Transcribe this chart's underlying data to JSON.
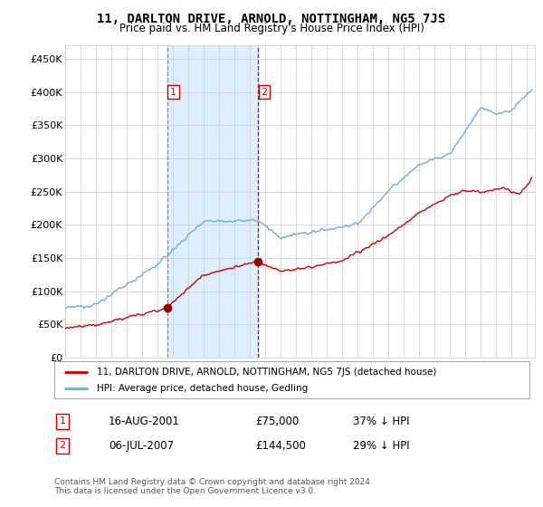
{
  "title": "11, DARLTON DRIVE, ARNOLD, NOTTINGHAM, NG5 7JS",
  "subtitle": "Price paid vs. HM Land Registry's House Price Index (HPI)",
  "legend_line1": "11, DARLTON DRIVE, ARNOLD, NOTTINGHAM, NG5 7JS (detached house)",
  "legend_line2": "HPI: Average price, detached house, Gedling",
  "footnote": "Contains HM Land Registry data © Crown copyright and database right 2024.\nThis data is licensed under the Open Government Licence v3.0.",
  "sale1_label": "1",
  "sale1_date": "16-AUG-2001",
  "sale1_price": "£75,000",
  "sale1_hpi": "37% ↓ HPI",
  "sale2_label": "2",
  "sale2_date": "06-JUL-2007",
  "sale2_price": "£144,500",
  "sale2_hpi": "29% ↓ HPI",
  "hpi_color": "#6baed6",
  "shade_color": "#ddeeff",
  "price_color": "#cc0000",
  "marker_color": "#990000",
  "sale1_x": 2001.62,
  "sale1_y": 75000,
  "sale2_x": 2007.51,
  "sale2_y": 144500,
  "ylim": [
    0,
    470000
  ],
  "yticks": [
    0,
    50000,
    100000,
    150000,
    200000,
    250000,
    300000,
    350000,
    400000,
    450000
  ],
  "xlim": [
    1995.0,
    2025.5
  ]
}
